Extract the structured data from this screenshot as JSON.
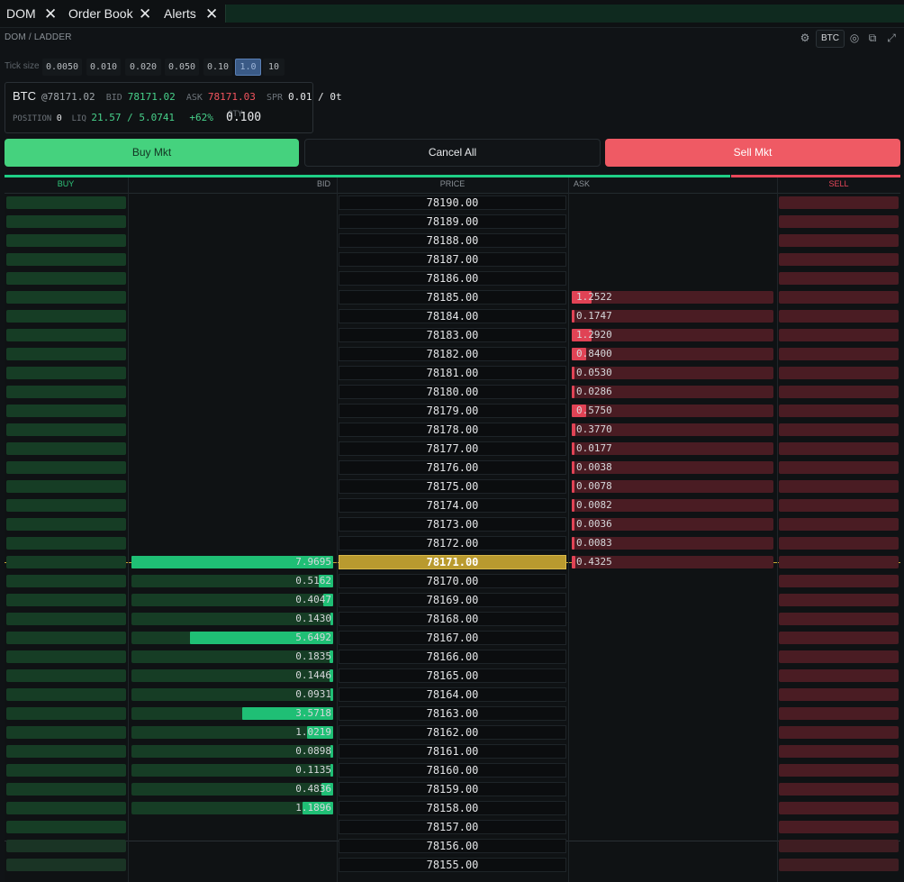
{
  "tabs": [
    {
      "label": "DOM"
    },
    {
      "label": "Order Book"
    },
    {
      "label": "Alerts"
    }
  ],
  "close_glyph": "✕",
  "subheader": "DOM / LADDER",
  "top_icons": {
    "settings": "⚙",
    "symbol": "BTC",
    "target": "◎",
    "popout": "⧉",
    "expand": "⤢"
  },
  "tick": {
    "label": "Tick size",
    "options": [
      "0.0050",
      "0.010",
      "0.020",
      "0.050",
      "0.10",
      "1.0",
      "10"
    ],
    "selected": "1.0"
  },
  "info": {
    "symbol": "BTC",
    "last": "@78171.02",
    "bid_label": "BID",
    "bid": "78171.02",
    "ask_label": "ASK",
    "ask": "78171.03",
    "spr_label": "SPR",
    "spr": "0.01 / 0t",
    "position_label": "POSITION",
    "position": "0",
    "liq_label": "LIQ",
    "liq": "21.57 / 5.0741",
    "change": "+62%",
    "qty_label": "QTY",
    "qty": "0.100"
  },
  "actions": {
    "buy": "Buy Mkt",
    "cancel": "Cancel All",
    "sell": "Sell Mkt"
  },
  "pressure": {
    "buy_fraction": 0.81
  },
  "columns": {
    "buy": "BUY",
    "bid": "BID",
    "price": "PRICE",
    "ask": "ASK",
    "sell": "SELL"
  },
  "colors": {
    "buy": "#45d27e",
    "sell": "#ef5a64",
    "current": "#b99a2f"
  },
  "ladder": [
    {
      "price": "78190.00"
    },
    {
      "price": "78189.00"
    },
    {
      "price": "78188.00"
    },
    {
      "price": "78187.00"
    },
    {
      "price": "78186.00"
    },
    {
      "price": "78185.00",
      "ask": "1.2522",
      "ask_fill": 0.1
    },
    {
      "price": "78184.00",
      "ask": "0.1747",
      "ask_fill": 0.01
    },
    {
      "price": "78183.00",
      "ask": "1.2920",
      "ask_fill": 0.1
    },
    {
      "price": "78182.00",
      "ask": "0.8400",
      "ask_fill": 0.07
    },
    {
      "price": "78181.00",
      "ask": "0.0530",
      "ask_fill": 0.005
    },
    {
      "price": "78180.00",
      "ask": "0.0286",
      "ask_fill": 0.005
    },
    {
      "price": "78179.00",
      "ask": "0.5750",
      "ask_fill": 0.07
    },
    {
      "price": "78178.00",
      "ask": "0.3770",
      "ask_fill": 0.02
    },
    {
      "price": "78177.00",
      "ask": "0.0177",
      "ask_fill": 0.005
    },
    {
      "price": "78176.00",
      "ask": "0.0038",
      "ask_fill": 0.005
    },
    {
      "price": "78175.00",
      "ask": "0.0078",
      "ask_fill": 0.005
    },
    {
      "price": "78174.00",
      "ask": "0.0082",
      "ask_fill": 0.005
    },
    {
      "price": "78173.00",
      "ask": "0.0036",
      "ask_fill": 0.005
    },
    {
      "price": "78172.00",
      "ask": "0.0083",
      "ask_fill": 0.005
    },
    {
      "price": "78171.00",
      "bid": "7.9695",
      "bid_fill": 1.0,
      "ask": "0.4325",
      "ask_fill": 0.02,
      "current": true
    },
    {
      "price": "78170.00",
      "bid": "0.5162",
      "bid_fill": 0.07
    },
    {
      "price": "78169.00",
      "bid": "0.4047",
      "bid_fill": 0.05
    },
    {
      "price": "78168.00",
      "bid": "0.1430",
      "bid_fill": 0.01
    },
    {
      "price": "78167.00",
      "bid": "5.6492",
      "bid_fill": 0.71
    },
    {
      "price": "78166.00",
      "bid": "0.1835",
      "bid_fill": 0.02
    },
    {
      "price": "78165.00",
      "bid": "0.1446",
      "bid_fill": 0.02
    },
    {
      "price": "78164.00",
      "bid": "0.0931",
      "bid_fill": 0.01
    },
    {
      "price": "78163.00",
      "bid": "3.5718",
      "bid_fill": 0.45
    },
    {
      "price": "78162.00",
      "bid": "1.0219",
      "bid_fill": 0.13
    },
    {
      "price": "78161.00",
      "bid": "0.0898",
      "bid_fill": 0.01
    },
    {
      "price": "78160.00",
      "bid": "0.1135",
      "bid_fill": 0.01
    },
    {
      "price": "78159.00",
      "bid": "0.4836",
      "bid_fill": 0.06
    },
    {
      "price": "78158.00",
      "bid": "1.1896",
      "bid_fill": 0.15
    },
    {
      "price": "78157.00"
    },
    {
      "price": "78156.00",
      "dim": true
    },
    {
      "price": "78155.00",
      "dim": true
    }
  ]
}
